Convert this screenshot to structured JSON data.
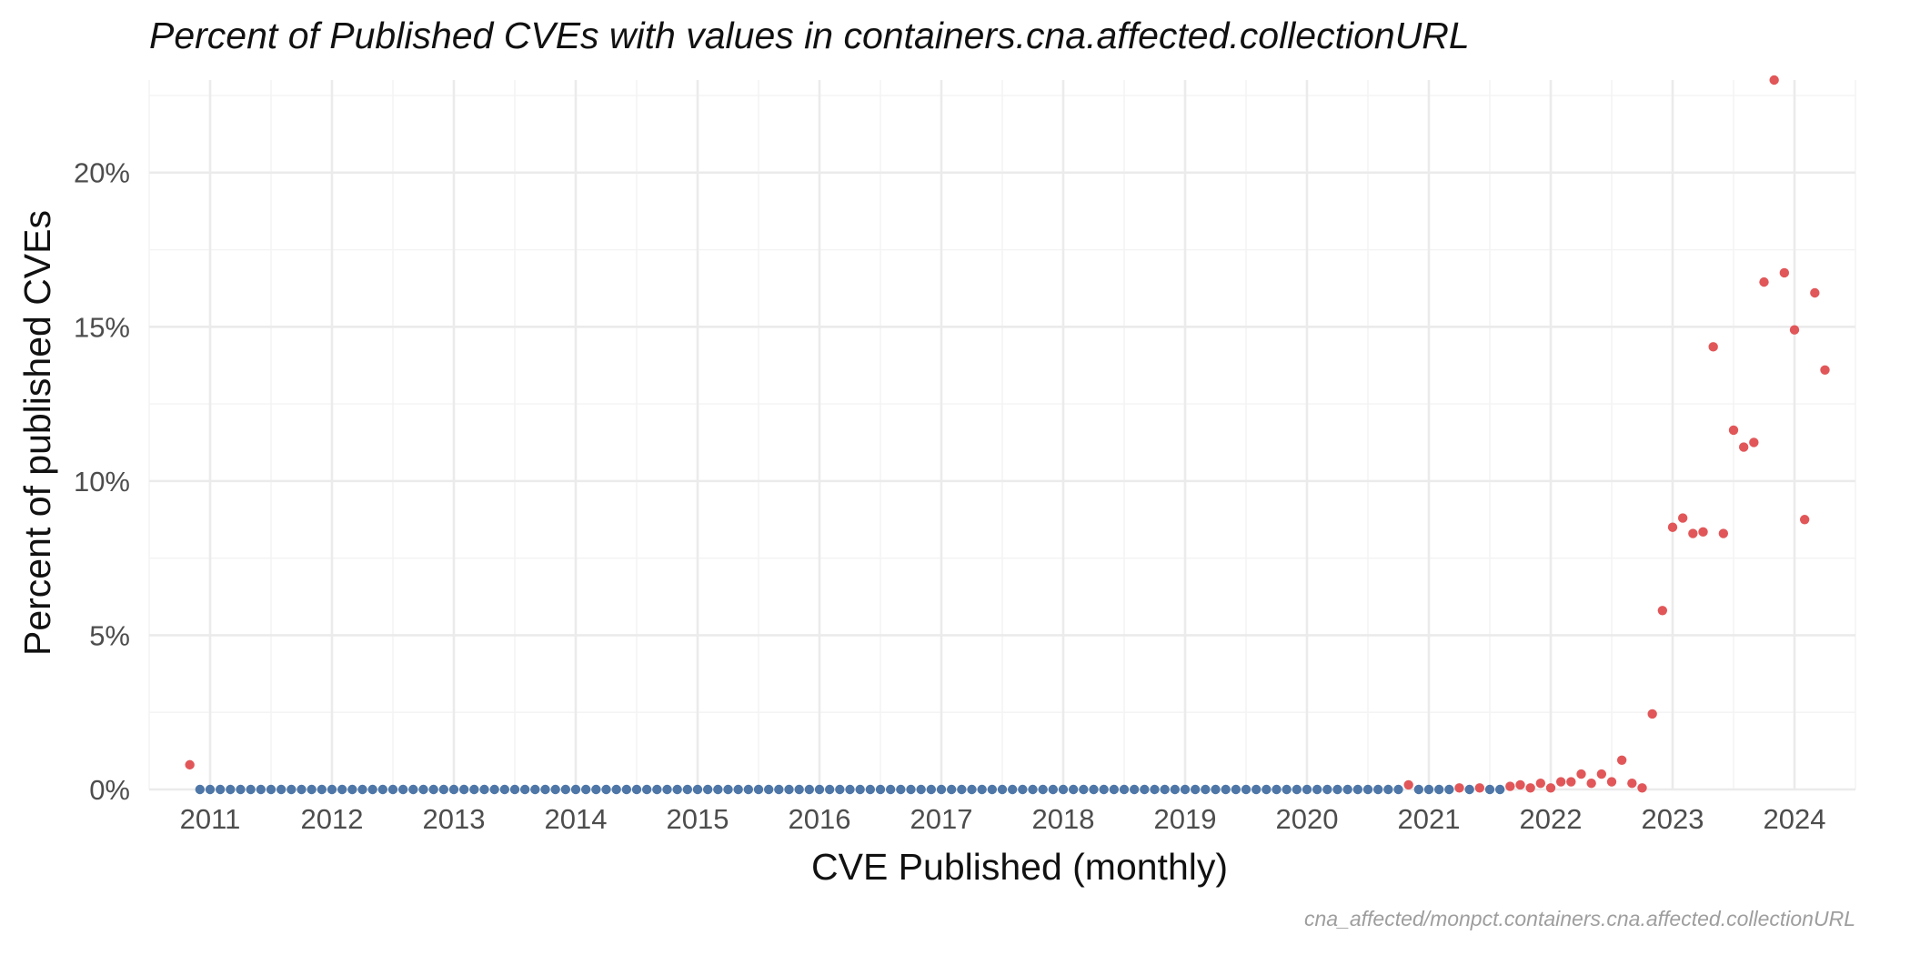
{
  "chart_data": {
    "type": "scatter",
    "title": "Percent of Published CVEs with values in containers.cna.affected.collectionURL",
    "xlabel": "CVE Published (monthly)",
    "ylabel": "Percent of published CVEs",
    "caption": "cna_affected/monpct.containers.cna.affected.collectionURL",
    "x_ticks": [
      "2011",
      "2012",
      "2013",
      "2014",
      "2015",
      "2016",
      "2017",
      "2018",
      "2019",
      "2020",
      "2021",
      "2022",
      "2023",
      "2024"
    ],
    "y_ticks": [
      "0%",
      "5%",
      "10%",
      "15%",
      "20%"
    ],
    "xlim": [
      "2010-07",
      "2024-07"
    ],
    "ylim": [
      0,
      23
    ],
    "grid": true,
    "legend": "none",
    "colors": {
      "zero": "#4e77a8",
      "nonzero": "#e15759"
    },
    "series": [
      {
        "x": [
          "2010-11",
          "2010-12",
          "2011-01",
          "2011-02",
          "2011-03",
          "2011-04",
          "2011-05",
          "2011-06",
          "2011-07",
          "2011-08",
          "2011-09",
          "2011-10",
          "2011-11",
          "2011-12",
          "2012-01",
          "2012-02",
          "2012-03",
          "2012-04",
          "2012-05",
          "2012-06",
          "2012-07",
          "2012-08",
          "2012-09",
          "2012-10",
          "2012-11",
          "2012-12",
          "2013-01",
          "2013-02",
          "2013-03",
          "2013-04",
          "2013-05",
          "2013-06",
          "2013-07",
          "2013-08",
          "2013-09",
          "2013-10",
          "2013-11",
          "2013-12",
          "2014-01",
          "2014-02",
          "2014-03",
          "2014-04",
          "2014-05",
          "2014-06",
          "2014-07",
          "2014-08",
          "2014-09",
          "2014-10",
          "2014-11",
          "2014-12",
          "2015-01",
          "2015-02",
          "2015-03",
          "2015-04",
          "2015-05",
          "2015-06",
          "2015-07",
          "2015-08",
          "2015-09",
          "2015-10",
          "2015-11",
          "2015-12",
          "2016-01",
          "2016-02",
          "2016-03",
          "2016-04",
          "2016-05",
          "2016-06",
          "2016-07",
          "2016-08",
          "2016-09",
          "2016-10",
          "2016-11",
          "2016-12",
          "2017-01",
          "2017-02",
          "2017-03",
          "2017-04",
          "2017-05",
          "2017-06",
          "2017-07",
          "2017-08",
          "2017-09",
          "2017-10",
          "2017-11",
          "2017-12",
          "2018-01",
          "2018-02",
          "2018-03",
          "2018-04",
          "2018-05",
          "2018-06",
          "2018-07",
          "2018-08",
          "2018-09",
          "2018-10",
          "2018-11",
          "2018-12",
          "2019-01",
          "2019-02",
          "2019-03",
          "2019-04",
          "2019-05",
          "2019-06",
          "2019-07",
          "2019-08",
          "2019-09",
          "2019-10",
          "2019-11",
          "2019-12",
          "2020-01",
          "2020-02",
          "2020-03",
          "2020-04",
          "2020-05",
          "2020-06",
          "2020-07",
          "2020-08",
          "2020-09",
          "2020-10",
          "2020-11",
          "2020-12",
          "2021-01",
          "2021-02",
          "2021-03",
          "2021-04",
          "2021-05",
          "2021-06",
          "2021-07",
          "2021-08",
          "2021-09",
          "2021-10",
          "2021-11",
          "2021-12",
          "2022-01",
          "2022-02",
          "2022-03",
          "2022-04",
          "2022-05",
          "2022-06",
          "2022-07",
          "2022-08",
          "2022-09",
          "2022-10",
          "2022-11",
          "2022-12",
          "2023-01",
          "2023-02",
          "2023-03",
          "2023-04",
          "2023-05",
          "2023-06",
          "2023-07",
          "2023-08",
          "2023-09",
          "2023-10",
          "2023-11",
          "2023-12",
          "2024-01",
          "2024-02",
          "2024-03",
          "2024-04"
        ],
        "values": [
          0.8,
          0,
          0,
          0,
          0,
          0,
          0,
          0,
          0,
          0,
          0,
          0,
          0,
          0,
          0,
          0,
          0,
          0,
          0,
          0,
          0,
          0,
          0,
          0,
          0,
          0,
          0,
          0,
          0,
          0,
          0,
          0,
          0,
          0,
          0,
          0,
          0,
          0,
          0,
          0,
          0,
          0,
          0,
          0,
          0,
          0,
          0,
          0,
          0,
          0,
          0,
          0,
          0,
          0,
          0,
          0,
          0,
          0,
          0,
          0,
          0,
          0,
          0,
          0,
          0,
          0,
          0,
          0,
          0,
          0,
          0,
          0,
          0,
          0,
          0,
          0,
          0,
          0,
          0,
          0,
          0,
          0,
          0,
          0,
          0,
          0,
          0,
          0,
          0,
          0,
          0,
          0,
          0,
          0,
          0,
          0,
          0,
          0,
          0,
          0,
          0,
          0,
          0,
          0,
          0,
          0,
          0,
          0,
          0,
          0,
          0,
          0,
          0,
          0,
          0,
          0,
          0,
          0,
          0,
          0,
          0.15,
          0,
          0,
          0,
          0,
          0.05,
          0,
          0.05,
          0,
          0,
          0.1,
          0.15,
          0.05,
          0.2,
          0.05,
          0.25,
          0.25,
          0.5,
          0.2,
          0.5,
          0.25,
          0.95,
          0.2,
          0.05,
          2.45,
          5.8,
          8.5,
          8.8,
          8.3,
          8.35,
          14.35,
          8.3,
          11.65,
          11.1,
          11.25,
          16.45,
          23.0,
          16.75,
          14.9,
          8.75,
          16.1,
          13.6
        ]
      }
    ]
  }
}
